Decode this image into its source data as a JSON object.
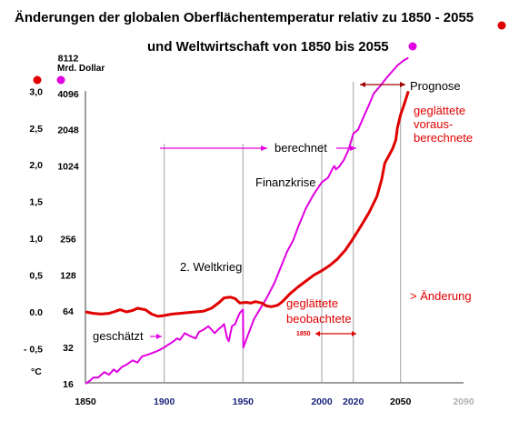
{
  "chart_data": {
    "type": "line",
    "title_line1": "Änderungen der globalen Oberflächentemperatur relativ zu 1850 - 2055",
    "title_line2": "und Weltwirtschaft von 1850 bis 2055",
    "left_axis_unit": "°C",
    "right_axis_label": "Mrd. Dollar",
    "legend_colors": {
      "temperature": "#e00000",
      "economy": "#e000e0"
    },
    "grid": false,
    "xlim": [
      1850,
      2090
    ],
    "x_ticks": [
      {
        "label": "1850",
        "value": 1850
      },
      {
        "label": "1900",
        "value": 1900
      },
      {
        "label": "1950",
        "value": 1950
      },
      {
        "label": "2000",
        "value": 2000
      },
      {
        "label": "2020",
        "value": 2020
      },
      {
        "label": "2050",
        "value": 2050
      },
      {
        "label": "2090",
        "value": 2090
      }
    ],
    "temp_ticks": [
      {
        "label": "3,0",
        "value": 3.0
      },
      {
        "label": "2,5",
        "value": 2.5
      },
      {
        "label": "2,0",
        "value": 2.0
      },
      {
        "label": "1,5",
        "value": 1.5
      },
      {
        "label": "1,0",
        "value": 1.0
      },
      {
        "label": "0,5",
        "value": 0.5
      },
      {
        "label": "0.0",
        "value": 0.0
      },
      {
        "label": "- 0,5",
        "value": -0.5
      }
    ],
    "econ_ticks": [
      {
        "label": "8112",
        "value": 8112
      },
      {
        "label": "4096",
        "value": 4096
      },
      {
        "label": "2048",
        "value": 2048
      },
      {
        "label": "1024",
        "value": 1024
      },
      {
        "label": "256",
        "value": 256
      },
      {
        "label": "128",
        "value": 128
      },
      {
        "label": "64",
        "value": 64
      },
      {
        "label": "32",
        "value": 32
      },
      {
        "label": "16",
        "value": 16
      }
    ],
    "series": [
      {
        "key": "temperature",
        "color": "#e00000",
        "unit": "°C",
        "points": [
          [
            1850,
            0.0
          ],
          [
            1855,
            -0.02
          ],
          [
            1860,
            -0.03
          ],
          [
            1865,
            -0.02
          ],
          [
            1868,
            0.0
          ],
          [
            1872,
            0.03
          ],
          [
            1876,
            0.0
          ],
          [
            1880,
            0.02
          ],
          [
            1883,
            0.05
          ],
          [
            1888,
            0.03
          ],
          [
            1892,
            -0.03
          ],
          [
            1896,
            -0.06
          ],
          [
            1900,
            -0.05
          ],
          [
            1905,
            -0.03
          ],
          [
            1910,
            -0.02
          ],
          [
            1915,
            -0.01
          ],
          [
            1920,
            0.0
          ],
          [
            1925,
            0.01
          ],
          [
            1930,
            0.05
          ],
          [
            1935,
            0.13
          ],
          [
            1938,
            0.19
          ],
          [
            1942,
            0.2
          ],
          [
            1945,
            0.18
          ],
          [
            1948,
            0.12
          ],
          [
            1952,
            0.13
          ],
          [
            1955,
            0.12
          ],
          [
            1958,
            0.14
          ],
          [
            1962,
            0.12
          ],
          [
            1965,
            0.08
          ],
          [
            1968,
            0.07
          ],
          [
            1972,
            0.09
          ],
          [
            1975,
            0.14
          ],
          [
            1980,
            0.25
          ],
          [
            1985,
            0.34
          ],
          [
            1990,
            0.42
          ],
          [
            1995,
            0.5
          ],
          [
            2000,
            0.56
          ],
          [
            2005,
            0.63
          ],
          [
            2010,
            0.72
          ],
          [
            2015,
            0.84
          ],
          [
            2020,
            1.0
          ],
          [
            2025,
            1.17
          ],
          [
            2030,
            1.35
          ],
          [
            2035,
            1.57
          ],
          [
            2038,
            1.8
          ],
          [
            2040,
            2.02
          ],
          [
            2043,
            2.14
          ],
          [
            2045,
            2.22
          ],
          [
            2047,
            2.34
          ],
          [
            2048,
            2.5
          ],
          [
            2050,
            2.68
          ],
          [
            2052,
            2.8
          ],
          [
            2055,
            3.0
          ]
        ]
      },
      {
        "key": "economy",
        "color": "#e000e0",
        "unit": "Mrd. Dollar",
        "points": [
          [
            1850,
            16
          ],
          [
            1853,
            17
          ],
          [
            1855,
            18
          ],
          [
            1858,
            18
          ],
          [
            1862,
            20
          ],
          [
            1865,
            19
          ],
          [
            1868,
            21
          ],
          [
            1870,
            20
          ],
          [
            1873,
            22
          ],
          [
            1876,
            23
          ],
          [
            1880,
            25
          ],
          [
            1883,
            24
          ],
          [
            1886,
            27
          ],
          [
            1890,
            28
          ],
          [
            1893,
            29
          ],
          [
            1896,
            30
          ],
          [
            1900,
            32
          ],
          [
            1903,
            34
          ],
          [
            1906,
            36
          ],
          [
            1908,
            38
          ],
          [
            1910,
            37
          ],
          [
            1913,
            42
          ],
          [
            1916,
            40
          ],
          [
            1920,
            38
          ],
          [
            1922,
            43
          ],
          [
            1925,
            45
          ],
          [
            1928,
            48
          ],
          [
            1930,
            45
          ],
          [
            1932,
            42
          ],
          [
            1935,
            46
          ],
          [
            1936,
            47
          ],
          [
            1938,
            50
          ],
          [
            1940,
            38
          ],
          [
            1941,
            36
          ],
          [
            1943,
            48
          ],
          [
            1945,
            50
          ],
          [
            1947,
            58
          ],
          [
            1948,
            62
          ],
          [
            1950,
            66
          ],
          [
            1950.2,
            32
          ],
          [
            1953,
            40
          ],
          [
            1957,
            55
          ],
          [
            1960,
            64
          ],
          [
            1965,
            82
          ],
          [
            1970,
            110
          ],
          [
            1975,
            160
          ],
          [
            1978,
            200
          ],
          [
            1982,
            250
          ],
          [
            1985,
            320
          ],
          [
            1990,
            460
          ],
          [
            1995,
            600
          ],
          [
            2000,
            750
          ],
          [
            2004,
            820
          ],
          [
            2007,
            980
          ],
          [
            2008,
            1024
          ],
          [
            2009,
            960
          ],
          [
            2011,
            1010
          ],
          [
            2014,
            1150
          ],
          [
            2017,
            1400
          ],
          [
            2020,
            1900
          ],
          [
            2023,
            2048
          ],
          [
            2027,
            2700
          ],
          [
            2030,
            3300
          ],
          [
            2033,
            4096
          ],
          [
            2037,
            4700
          ],
          [
            2041,
            5500
          ],
          [
            2045,
            6300
          ],
          [
            2048,
            7000
          ],
          [
            2052,
            7700
          ],
          [
            2055,
            8112
          ]
        ]
      }
    ],
    "annotations": {
      "prognose": "Prognose",
      "berechnet": "berechnet",
      "finanzkrise": "Finanzkrise",
      "weltkrieg": "2. Weltkrieg",
      "geschaetzt": "geschätzt",
      "geglaettete_vorausberechnete": [
        "geglättete",
        "voraus-",
        "berechnete"
      ],
      "aenderung": "> Änderung",
      "geglaettete_beobachtete": [
        "geglättete",
        "beobachtete"
      ],
      "range_start": "1850"
    }
  }
}
